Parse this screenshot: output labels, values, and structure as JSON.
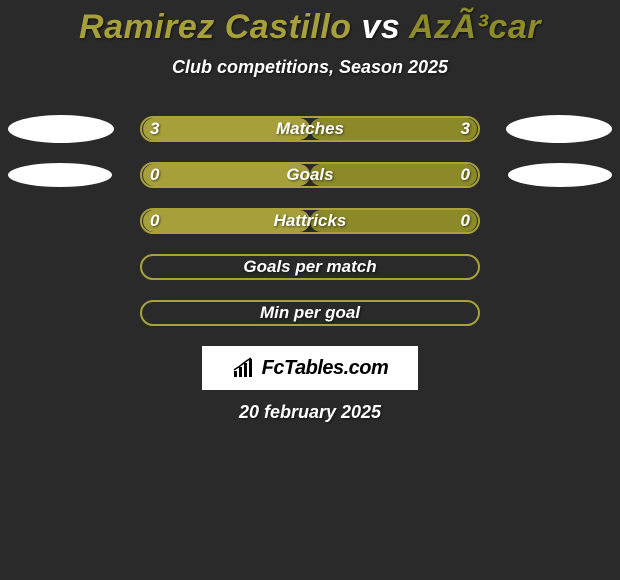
{
  "title_parts": {
    "player1": "Ramirez Castillo",
    "vs": " vs ",
    "player2": "AzÃ³car"
  },
  "subtitle": "Club competitions, Season 2025",
  "date": "20 february 2025",
  "logo_text": "FcTables.com",
  "colors": {
    "left_accent": "#a7a03a",
    "right_accent": "#8c8928",
    "bar_border": "#aaa238",
    "bar_border_empty": "#aaa238",
    "background": "#2a2a2a",
    "title_left": "#a7a03a",
    "title_vs": "#ffffff",
    "title_right": "#8e8b29",
    "ellipse": "#ffffff",
    "text": "#ffffff"
  },
  "ellipses": {
    "row0": {
      "show": true,
      "left_w": 106,
      "left_h": 28,
      "right_w": 106,
      "right_h": 28
    },
    "row1": {
      "show": true,
      "left_w": 104,
      "left_h": 24,
      "right_w": 104,
      "right_h": 24
    }
  },
  "stats": [
    {
      "label": "Matches",
      "left_value": "3",
      "right_value": "3",
      "left_fill_pct": 50,
      "right_fill_pct": 50,
      "left_fill_color": "#a7a03a",
      "right_fill_color": "#8c8928",
      "show_ellipses": true
    },
    {
      "label": "Goals",
      "left_value": "0",
      "right_value": "0",
      "left_fill_pct": 50,
      "right_fill_pct": 50,
      "left_fill_color": "#a7a03a",
      "right_fill_color": "#8c8928",
      "show_ellipses": true
    },
    {
      "label": "Hattricks",
      "left_value": "0",
      "right_value": "0",
      "left_fill_pct": 50,
      "right_fill_pct": 50,
      "left_fill_color": "#a7a03a",
      "right_fill_color": "#8c8928",
      "show_ellipses": false
    },
    {
      "label": "Goals per match",
      "left_value": "",
      "right_value": "",
      "left_fill_pct": 0,
      "right_fill_pct": 0,
      "left_fill_color": "#a7a03a",
      "right_fill_color": "#8c8928",
      "show_ellipses": false
    },
    {
      "label": "Min per goal",
      "left_value": "",
      "right_value": "",
      "left_fill_pct": 0,
      "right_fill_pct": 0,
      "left_fill_color": "#a7a03a",
      "right_fill_color": "#8c8928",
      "show_ellipses": false
    }
  ]
}
